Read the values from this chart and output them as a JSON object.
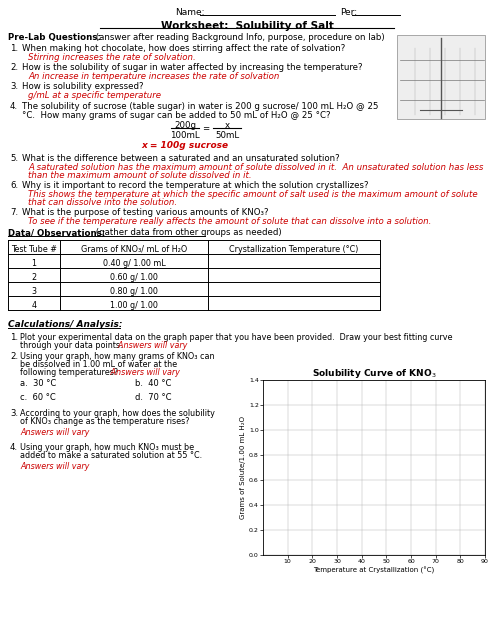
{
  "title": "Worksheet:  Solubility of Salt",
  "questions": [
    {
      "num": "1.",
      "q": "When making hot chocolate, how does stirring affect the rate of solvation?",
      "a": "Stirring increases the rate of solvation."
    },
    {
      "num": "2.",
      "q": "How is the solubility of sugar in water affected by increasing the temperature?",
      "a": "An increase in temperature increases the rate of solvation"
    },
    {
      "num": "3.",
      "q": "How is solubility expressed?",
      "a": "g/mL at a specific temperature"
    },
    {
      "num": "4.",
      "q1": "The solubility of sucrose (table sugar) in water is 200 g sucrose/ 100 mL H₂O @ 25",
      "q2": "°C.  How many grams of sugar can be added to 50 mL of H₂O @ 25 °C?",
      "a_frac_num": "200g",
      "a_frac_den": "100mL",
      "a_frac_x": "x",
      "a_frac_eq2": "50mL",
      "a_result": "x = 100g sucrose"
    },
    {
      "num": "5.",
      "q": "What is the difference between a saturated and an unsaturated solution?",
      "a1": "A saturated solution has the maximum amount of solute dissolved in it.  An unsaturated solution has less",
      "a2": "than the maximum amount of solute dissolved in it."
    },
    {
      "num": "6.",
      "q": "Why is it important to record the temperature at which the solution crystallizes?",
      "a1": "This shows the temperature at which the specific amount of salt used is the maximum amount of solute",
      "a2": "that can dissolve into the solution."
    },
    {
      "num": "7.",
      "q": "What is the purpose of testing various amounts of KNO₃?",
      "a": "To see if the temperature really affects the amount of solute that can dissolve into a solution."
    }
  ],
  "table_headers": [
    "Test Tube #",
    "Grams of KNO₃/ mL of H₂O",
    "Crystallization Temperature (°C)"
  ],
  "table_rows": [
    [
      "1",
      "0.40 g/ 1.00 mL",
      ""
    ],
    [
      "2",
      "0.60 g/ 1.00",
      ""
    ],
    [
      "3",
      "0.80 g/ 1.00",
      ""
    ],
    [
      "4",
      "1.00 g/ 1.00",
      ""
    ]
  ],
  "graph_ylabel": "Grams of Solute/1.00 mL H₂O",
  "graph_xlabel": "Temperature at Crystallization (°C)",
  "graph_yticks": [
    0.0,
    0.2,
    0.4,
    0.6,
    0.8,
    1.0,
    1.2,
    1.4
  ],
  "graph_xticks": [
    10,
    20,
    30,
    40,
    50,
    60,
    70,
    80,
    90
  ],
  "answer_color": "#cc0000",
  "text_color": "#000000",
  "bg_color": "#ffffff"
}
